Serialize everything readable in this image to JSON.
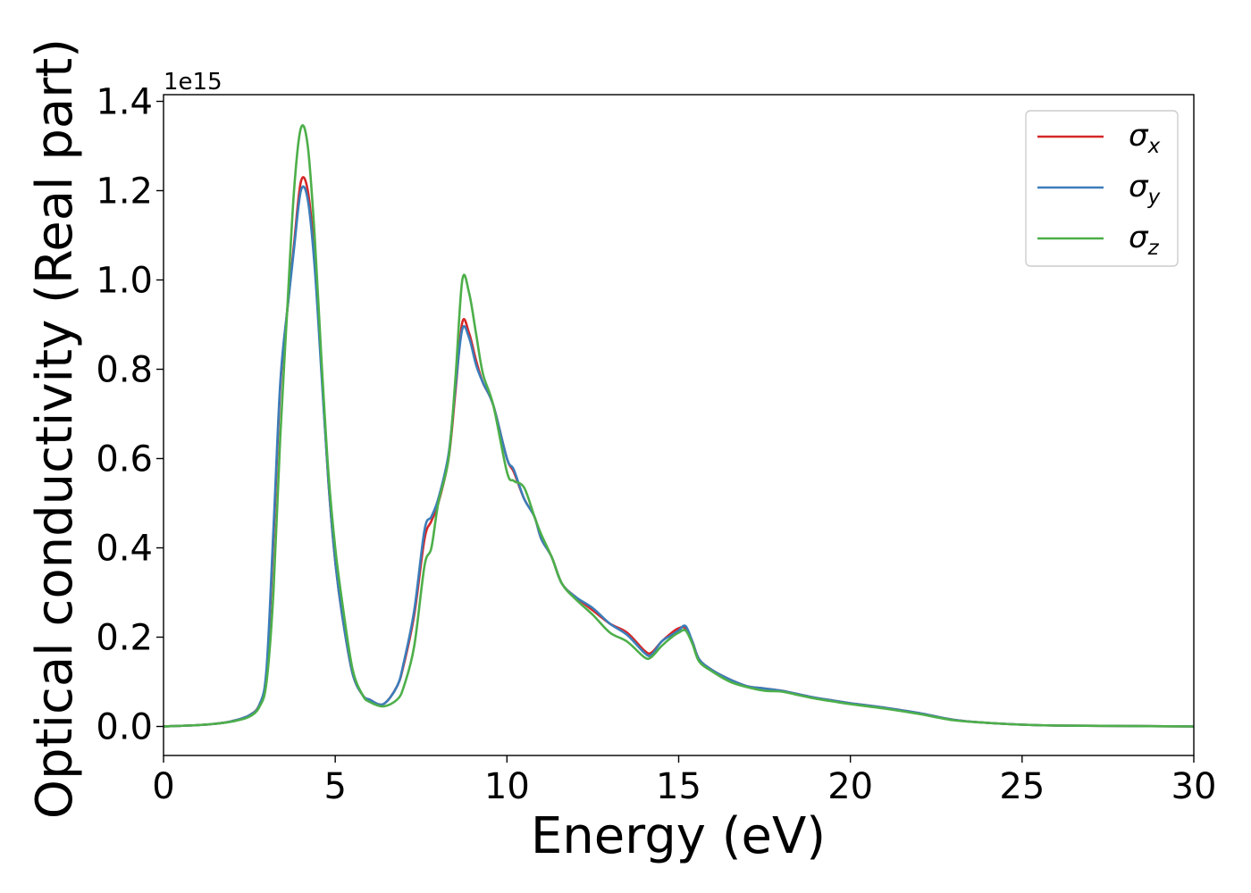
{
  "chart_data": {
    "type": "line",
    "title": "",
    "xlabel": "Energy (eV)",
    "ylabel": "Optical conductivity (Real part)",
    "y_offset_label": "1e15",
    "y_scale_factor": 1000000000000000.0,
    "xlim": [
      0,
      30
    ],
    "ylim": [
      -0.065,
      1.415
    ],
    "xticks": [
      0,
      5,
      10,
      15,
      20,
      25,
      30
    ],
    "xtick_labels": [
      "0",
      "5",
      "10",
      "15",
      "20",
      "25",
      "30"
    ],
    "yticks": [
      0.0,
      0.2,
      0.4,
      0.6,
      0.8,
      1.0,
      1.2,
      1.4
    ],
    "ytick_labels": [
      "0.0",
      "0.2",
      "0.4",
      "0.6",
      "0.8",
      "1.0",
      "1.2",
      "1.4"
    ],
    "grid": false,
    "legend_position": "top-right",
    "series": [
      {
        "name": "σx",
        "symbol": "σ",
        "subscript": "x",
        "color": "#d62728",
        "x": [
          0,
          1,
          1.5,
          2,
          2.5,
          2.8,
          3.0,
          3.2,
          3.4,
          3.6,
          3.8,
          4.0,
          4.2,
          4.4,
          4.6,
          4.8,
          5.0,
          5.2,
          5.5,
          5.8,
          6.0,
          6.4,
          6.8,
          7.0,
          7.3,
          7.6,
          7.8,
          8.0,
          8.3,
          8.5,
          8.7,
          8.9,
          9.1,
          9.3,
          9.6,
          10.0,
          10.2,
          10.5,
          10.8,
          11.0,
          11.3,
          11.6,
          12.0,
          12.5,
          13.0,
          13.5,
          14.0,
          14.2,
          14.5,
          14.8,
          15.0,
          15.2,
          15.4,
          15.6,
          16.0,
          16.5,
          17.0,
          17.5,
          18.0,
          18.5,
          19.0,
          19.5,
          20.0,
          21.0,
          22.0,
          23.0,
          24.0,
          25.0,
          26.0,
          28.0,
          30.0
        ],
        "y": [
          0.0,
          0.003,
          0.006,
          0.012,
          0.025,
          0.05,
          0.12,
          0.42,
          0.76,
          0.93,
          1.08,
          1.22,
          1.2,
          1.05,
          0.8,
          0.55,
          0.37,
          0.25,
          0.12,
          0.07,
          0.06,
          0.05,
          0.09,
          0.14,
          0.25,
          0.42,
          0.46,
          0.5,
          0.6,
          0.75,
          0.905,
          0.88,
          0.82,
          0.77,
          0.72,
          0.6,
          0.57,
          0.51,
          0.47,
          0.42,
          0.38,
          0.32,
          0.29,
          0.26,
          0.23,
          0.21,
          0.17,
          0.165,
          0.19,
          0.21,
          0.22,
          0.22,
          0.19,
          0.15,
          0.125,
          0.105,
          0.09,
          0.085,
          0.08,
          0.072,
          0.064,
          0.058,
          0.052,
          0.042,
          0.03,
          0.015,
          0.008,
          0.004,
          0.002,
          0.001,
          0.0
        ]
      },
      {
        "name": "σy",
        "symbol": "σ",
        "subscript": "y",
        "color": "#3b7dba",
        "x": [
          0,
          1,
          1.5,
          2,
          2.5,
          2.8,
          3.0,
          3.2,
          3.4,
          3.6,
          3.8,
          4.0,
          4.2,
          4.4,
          4.6,
          4.8,
          5.0,
          5.2,
          5.5,
          5.8,
          6.0,
          6.4,
          6.8,
          7.0,
          7.3,
          7.6,
          7.8,
          8.0,
          8.3,
          8.5,
          8.7,
          8.9,
          9.1,
          9.3,
          9.6,
          10.0,
          10.2,
          10.5,
          10.8,
          11.0,
          11.3,
          11.6,
          12.0,
          12.5,
          13.0,
          13.5,
          14.0,
          14.2,
          14.5,
          14.8,
          15.0,
          15.2,
          15.4,
          15.6,
          16.0,
          16.5,
          17.0,
          17.5,
          18.0,
          18.5,
          19.0,
          19.5,
          20.0,
          21.0,
          22.0,
          23.0,
          24.0,
          25.0,
          26.0,
          28.0,
          30.0
        ],
        "y": [
          0.0,
          0.003,
          0.006,
          0.012,
          0.025,
          0.05,
          0.13,
          0.44,
          0.77,
          0.93,
          1.07,
          1.2,
          1.18,
          1.03,
          0.79,
          0.55,
          0.37,
          0.25,
          0.12,
          0.07,
          0.06,
          0.05,
          0.09,
          0.145,
          0.26,
          0.44,
          0.47,
          0.51,
          0.61,
          0.76,
          0.89,
          0.87,
          0.81,
          0.77,
          0.72,
          0.6,
          0.575,
          0.51,
          0.47,
          0.42,
          0.38,
          0.32,
          0.29,
          0.265,
          0.23,
          0.205,
          0.165,
          0.16,
          0.19,
          0.205,
          0.215,
          0.225,
          0.19,
          0.15,
          0.125,
          0.105,
          0.09,
          0.085,
          0.08,
          0.072,
          0.064,
          0.058,
          0.052,
          0.042,
          0.03,
          0.015,
          0.008,
          0.004,
          0.002,
          0.001,
          0.0
        ]
      },
      {
        "name": "σz",
        "symbol": "σ",
        "subscript": "z",
        "color": "#4daf4a",
        "x": [
          0,
          1,
          1.5,
          2,
          2.5,
          2.8,
          3.0,
          3.2,
          3.4,
          3.6,
          3.8,
          4.0,
          4.2,
          4.4,
          4.6,
          4.8,
          5.0,
          5.2,
          5.5,
          5.8,
          6.0,
          6.4,
          6.8,
          7.0,
          7.3,
          7.6,
          7.8,
          8.0,
          8.3,
          8.5,
          8.7,
          8.9,
          9.1,
          9.3,
          9.6,
          10.0,
          10.2,
          10.5,
          10.8,
          11.0,
          11.3,
          11.6,
          12.0,
          12.5,
          13.0,
          13.5,
          14.0,
          14.2,
          14.5,
          14.8,
          15.0,
          15.2,
          15.4,
          15.6,
          16.0,
          16.5,
          17.0,
          17.5,
          18.0,
          18.5,
          19.0,
          19.5,
          20.0,
          21.0,
          22.0,
          23.0,
          24.0,
          25.0,
          26.0,
          28.0,
          30.0
        ],
        "y": [
          0.0,
          0.003,
          0.006,
          0.011,
          0.022,
          0.045,
          0.1,
          0.3,
          0.65,
          0.93,
          1.2,
          1.34,
          1.3,
          1.1,
          0.82,
          0.57,
          0.4,
          0.28,
          0.13,
          0.07,
          0.055,
          0.045,
          0.06,
          0.09,
          0.18,
          0.36,
          0.4,
          0.5,
          0.6,
          0.78,
          1.0,
          0.97,
          0.88,
          0.79,
          0.72,
          0.57,
          0.55,
          0.535,
          0.47,
          0.43,
          0.38,
          0.32,
          0.285,
          0.25,
          0.21,
          0.19,
          0.155,
          0.155,
          0.18,
          0.2,
          0.21,
          0.215,
          0.185,
          0.145,
          0.122,
          0.1,
          0.088,
          0.08,
          0.078,
          0.07,
          0.062,
          0.056,
          0.05,
          0.04,
          0.028,
          0.014,
          0.008,
          0.004,
          0.002,
          0.001,
          0.0
        ]
      }
    ]
  }
}
